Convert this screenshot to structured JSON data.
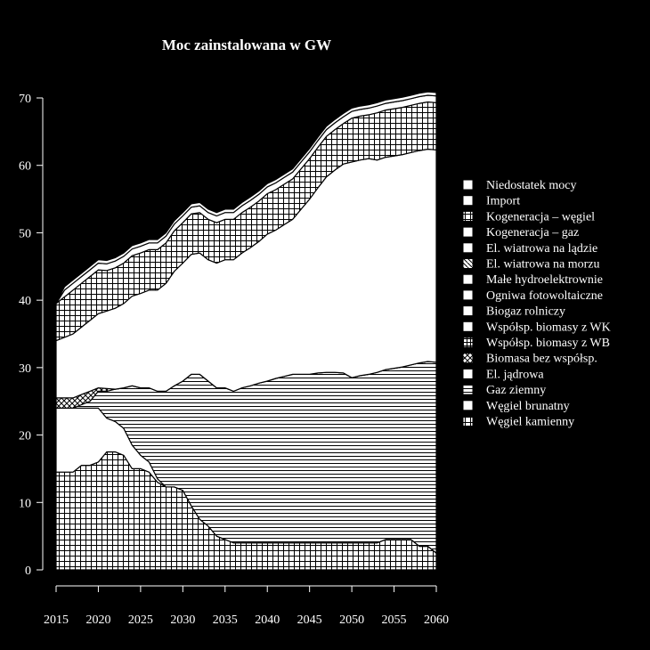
{
  "chart_data": {
    "type": "area",
    "title": "Moc zainstalowana w GW",
    "xlabel": "",
    "ylabel": "",
    "xlim": [
      2015,
      2060
    ],
    "ylim": [
      0,
      70
    ],
    "x_ticks": [
      2015,
      2020,
      2025,
      2030,
      2035,
      2040,
      2045,
      2050,
      2055,
      2060
    ],
    "y_ticks": [
      0,
      10,
      20,
      30,
      40,
      50,
      60,
      70
    ],
    "grid": false,
    "legend_position": "right",
    "x": [
      2015,
      2016,
      2017,
      2018,
      2019,
      2020,
      2021,
      2022,
      2023,
      2024,
      2025,
      2026,
      2027,
      2028,
      2029,
      2030,
      2031,
      2032,
      2033,
      2034,
      2035,
      2036,
      2037,
      2038,
      2039,
      2040,
      2041,
      2042,
      2043,
      2044,
      2045,
      2046,
      2047,
      2048,
      2049,
      2050,
      2051,
      2052,
      2053,
      2054,
      2055,
      2056,
      2057,
      2058,
      2059,
      2060
    ],
    "series": [
      {
        "name": "Węgiel kamienny",
        "pattern": "grid",
        "values": [
          14.5,
          14.5,
          14.5,
          15.5,
          15.5,
          16,
          17.5,
          17.5,
          17,
          15,
          15,
          14.5,
          13,
          12.3,
          12.3,
          11.8,
          9.5,
          7.5,
          6.5,
          5,
          4.5,
          4,
          4,
          4,
          4,
          4,
          4,
          4,
          4,
          4,
          4,
          4,
          4,
          4,
          4,
          4,
          4,
          4,
          4,
          4.5,
          4.5,
          4.5,
          4.5,
          3.5,
          3.5,
          2.5
        ]
      },
      {
        "name": "Węgiel brunatny",
        "pattern": "solid",
        "values": [
          9.5,
          9.5,
          9.5,
          8.5,
          8.5,
          8,
          5,
          4.5,
          4,
          3.5,
          2,
          1.5,
          0.5,
          0,
          0,
          0,
          0,
          0,
          0,
          0,
          0,
          0,
          0,
          0,
          0,
          0,
          0,
          0,
          0,
          0,
          0,
          0,
          0,
          0,
          0,
          0,
          0,
          0,
          0,
          0,
          0,
          0,
          0,
          0,
          0,
          0
        ]
      },
      {
        "name": "Gaz ziemny",
        "pattern": "hlines",
        "values": [
          0,
          0,
          0,
          0.5,
          1,
          2.5,
          4,
          4.8,
          6,
          8.8,
          10,
          11,
          13,
          14.2,
          15,
          16.2,
          19.5,
          21.5,
          21.5,
          22,
          22.5,
          22.5,
          23,
          23.3,
          23.7,
          24,
          24.4,
          24.7,
          25,
          25,
          25,
          25.2,
          25.3,
          25.3,
          25.2,
          24.5,
          24.8,
          25,
          25.3,
          25.2,
          25.4,
          25.6,
          25.9,
          27.2,
          27.4,
          28.3
        ]
      },
      {
        "name": "El. jądrowa",
        "pattern": "solid",
        "values": [
          0,
          0,
          0,
          0,
          0,
          0,
          0,
          0,
          0,
          0,
          0,
          0,
          0,
          0,
          0,
          0,
          0,
          0,
          0,
          0,
          0,
          0,
          0,
          0,
          0,
          0,
          0,
          0,
          0,
          0,
          0,
          0,
          0,
          0,
          0,
          0,
          0,
          0,
          0,
          0,
          0,
          0,
          0,
          0,
          0,
          0
        ]
      },
      {
        "name": "Biomasa bez współsp.",
        "pattern": "crosshatch",
        "values": [
          1.5,
          1.5,
          1.5,
          1.5,
          1.5,
          0.5,
          0.4,
          0,
          0,
          0,
          0,
          0,
          0,
          0,
          0,
          0,
          0,
          0,
          0,
          0,
          0,
          0,
          0,
          0,
          0,
          0,
          0,
          0,
          0,
          0,
          0,
          0,
          0,
          0,
          0,
          0,
          0,
          0,
          0,
          0,
          0,
          0,
          0,
          0,
          0,
          0
        ]
      },
      {
        "name": "Współsp. biomasy z WB",
        "pattern": "fine-grid",
        "values": [
          0,
          0,
          0,
          0,
          0,
          0,
          0,
          0,
          0,
          0,
          0,
          0,
          0,
          0,
          0,
          0,
          0,
          0,
          0,
          0,
          0,
          0,
          0,
          0,
          0,
          0,
          0,
          0,
          0,
          0,
          0,
          0,
          0,
          0,
          0,
          0,
          0,
          0,
          0,
          0,
          0,
          0,
          0,
          0,
          0,
          0
        ]
      },
      {
        "name": "Współsp. biomasy z WK",
        "pattern": "solid",
        "values": [
          0,
          0,
          0,
          0,
          0,
          0,
          0,
          0,
          0,
          0,
          0,
          0,
          0,
          0,
          0,
          0,
          0,
          0,
          0,
          0,
          0,
          0,
          0,
          0,
          0,
          0,
          0,
          0,
          0,
          0,
          0,
          0,
          0,
          0,
          0,
          0,
          0,
          0,
          0,
          0,
          0,
          0,
          0,
          0,
          0,
          0
        ]
      },
      {
        "name": "Biogaz rolniczy",
        "pattern": "solid",
        "values": [
          0,
          0,
          0,
          0,
          0,
          0,
          0,
          0,
          0,
          0,
          0,
          0,
          0,
          0,
          0,
          0,
          0,
          0,
          0,
          0,
          0,
          0,
          0,
          0,
          0,
          0,
          0,
          0,
          0,
          0,
          0,
          0,
          0,
          0,
          0,
          0,
          0,
          0,
          0,
          0,
          0,
          0,
          0,
          0,
          0,
          0
        ]
      },
      {
        "name": "Ogniwa fotowoltaiczne",
        "pattern": "solid",
        "values": [
          8.5,
          9,
          9.5,
          10,
          10.5,
          11,
          11.5,
          12,
          12.5,
          13.3,
          14,
          14.5,
          15,
          16,
          17,
          17.5,
          17.8,
          18,
          18,
          18.5,
          19,
          19.5,
          20,
          20.5,
          21,
          21.8,
          22,
          22.5,
          23,
          24.5,
          26,
          27.5,
          29,
          30,
          31,
          32,
          32,
          32,
          31.5,
          31.5,
          31.5,
          31.5,
          31.5,
          31.5,
          31.5,
          31.5
        ]
      },
      {
        "name": "Małe hydroelektrownie",
        "pattern": "solid",
        "values": [
          0,
          0,
          0,
          0,
          0,
          0,
          0,
          0,
          0,
          0,
          0,
          0,
          0,
          0,
          0,
          0,
          0,
          0,
          0,
          0,
          0,
          0,
          0,
          0,
          0,
          0,
          0,
          0,
          0,
          0,
          0,
          0,
          0,
          0,
          0,
          0,
          0,
          0,
          0,
          0,
          0,
          0,
          0,
          0,
          0,
          0
        ]
      },
      {
        "name": "El. wiatrowa na morzu",
        "pattern": "diagonal",
        "values": [
          0,
          0,
          0,
          0,
          0,
          0,
          0,
          0,
          0,
          0,
          0,
          0,
          0,
          0,
          0,
          0,
          0,
          0,
          0,
          0,
          0,
          0,
          0,
          0,
          0,
          0,
          0,
          0,
          0,
          0,
          0,
          0,
          0,
          0,
          0,
          0,
          0,
          0,
          0,
          0,
          0,
          0,
          0,
          0,
          0,
          0
        ]
      },
      {
        "name": "El. wiatrowa na lądzie",
        "pattern": "solid",
        "values": [
          0,
          0,
          0,
          0,
          0,
          0,
          0,
          0,
          0,
          0,
          0,
          0,
          0,
          0,
          0,
          0,
          0,
          0,
          0,
          0,
          0,
          0,
          0,
          0,
          0,
          0,
          0,
          0,
          0,
          0,
          0,
          0,
          0,
          0,
          0,
          0,
          0,
          0,
          0,
          0,
          0,
          0,
          0,
          0,
          0,
          0
        ]
      },
      {
        "name": "Kogeneracja – gaz",
        "pattern": "solid",
        "values": [
          0,
          0,
          0,
          0,
          0,
          0,
          0,
          0,
          0,
          0,
          0,
          0,
          0,
          0,
          0,
          0,
          0,
          0,
          0,
          0,
          0,
          0,
          0,
          0,
          0,
          0,
          0,
          0,
          0,
          0,
          0,
          0,
          0,
          0,
          0,
          0,
          0,
          0,
          0,
          0,
          0,
          0,
          0,
          0,
          0,
          0
        ]
      },
      {
        "name": "Kogeneracja – węgiel",
        "pattern": "grid",
        "values": [
          5.5,
          6,
          6.5,
          6.5,
          6.5,
          6.5,
          6,
          6,
          6,
          6,
          6,
          6,
          6,
          6,
          6,
          6,
          6,
          6,
          6,
          6,
          6,
          6,
          6,
          6,
          6,
          6,
          6,
          6,
          6,
          6,
          6,
          6,
          6,
          6,
          6,
          6.5,
          6.5,
          6.5,
          7,
          7,
          7,
          7,
          7,
          7,
          7,
          7
        ]
      },
      {
        "name": "Import",
        "pattern": "solid",
        "values": [
          0,
          1,
          1,
          1,
          1,
          1,
          1,
          1,
          1,
          1,
          1,
          1,
          1,
          1,
          1,
          1,
          1,
          1,
          1,
          1,
          1,
          1,
          1,
          1,
          1,
          1,
          1,
          1,
          1,
          1,
          1,
          1,
          1,
          1,
          1,
          1,
          1,
          1,
          1,
          1,
          1,
          1,
          1,
          1,
          1,
          1
        ]
      },
      {
        "name": "Niedostatek mocy",
        "pattern": "solid",
        "values": [
          0,
          0.5,
          0.5,
          0.5,
          0.5,
          0.5,
          0.5,
          0.5,
          0.5,
          0.5,
          0.5,
          0.5,
          0.5,
          0.5,
          0.5,
          0.5,
          0.5,
          0.5,
          0.5,
          0.5,
          0.5,
          0.5,
          0.5,
          0.5,
          0.5,
          0.5,
          0.5,
          0.5,
          0.5,
          0.5,
          0.5,
          0.5,
          0.5,
          0.5,
          0.5,
          0.5,
          0.5,
          0.5,
          0.5,
          0.5,
          0.5,
          0.5,
          0.5,
          0.5,
          0.5,
          0.5
        ]
      }
    ],
    "legend": [
      {
        "label": "Niedostatek mocy",
        "pattern": "solid"
      },
      {
        "label": "Import",
        "pattern": "solid"
      },
      {
        "label": "Kogeneracja – węgiel",
        "pattern": "grid"
      },
      {
        "label": "Kogeneracja – gaz",
        "pattern": "solid"
      },
      {
        "label": "El. wiatrowa na lądzie",
        "pattern": "solid"
      },
      {
        "label": "El. wiatrowa na morzu",
        "pattern": "diagonal"
      },
      {
        "label": "Małe hydroelektrownie",
        "pattern": "solid"
      },
      {
        "label": "Ogniwa fotowoltaiczne",
        "pattern": "solid"
      },
      {
        "label": "Biogaz rolniczy",
        "pattern": "solid"
      },
      {
        "label": "Współsp. biomasy z WK",
        "pattern": "solid"
      },
      {
        "label": "Współsp. biomasy z WB",
        "pattern": "fine-grid"
      },
      {
        "label": "Biomasa bez współsp.",
        "pattern": "crosshatch"
      },
      {
        "label": "El. jądrowa",
        "pattern": "solid"
      },
      {
        "label": "Gaz ziemny",
        "pattern": "hlines"
      },
      {
        "label": "Węgiel brunatny",
        "pattern": "solid"
      },
      {
        "label": "Węgiel kamienny",
        "pattern": "grid"
      }
    ],
    "colors": {
      "background": "#000000",
      "foreground": "#ffffff"
    }
  }
}
